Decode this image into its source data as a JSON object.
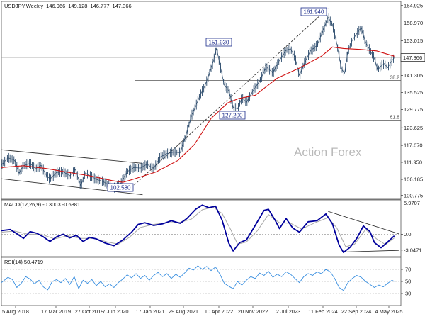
{
  "chart_data": {
    "type": "line",
    "symbol": "USDJPY,Weekly",
    "header_values": [
      "146.966",
      "149.128",
      "146.777",
      "147.366"
    ],
    "watermark": "Action Forex",
    "x_tick_labels": [
      "5 Aug 2018",
      "17 Mar 2019",
      "27 Oct 2019",
      "7 Jun 2020",
      "17 Jan 2021",
      "29 Aug 2021",
      "10 Apr 2022",
      "20 Nov 2022",
      "2 Jul 2023",
      "11 Feb 2024",
      "22 Sep 2024",
      "4 May 2025"
    ],
    "price_panel": {
      "y_ticks": [
        "164.925",
        "158.970",
        "153.015",
        "147.060",
        "141.305",
        "135.525",
        "129.775",
        "123.625",
        "117.670",
        "111.950",
        "106.185",
        "100.775"
      ],
      "last_price": "147.366",
      "fib_levels": [
        {
          "label": "38.2",
          "value": 139.6
        },
        {
          "label": "61.8",
          "value": 126.2
        }
      ],
      "annotations": [
        "161.940",
        "151.930",
        "127.200",
        "102.580"
      ],
      "close": [
        {
          "t": 0,
          "v": 111.0
        },
        {
          "t": 6,
          "v": 113.5
        },
        {
          "t": 12,
          "v": 112.6
        },
        {
          "t": 16,
          "v": 108.3
        },
        {
          "t": 20,
          "v": 110.8
        },
        {
          "t": 26,
          "v": 111.6
        },
        {
          "t": 31,
          "v": 109.8
        },
        {
          "t": 36,
          "v": 110.9
        },
        {
          "t": 40,
          "v": 108.0
        },
        {
          "t": 44,
          "v": 106.3
        },
        {
          "t": 50,
          "v": 108.5
        },
        {
          "t": 56,
          "v": 108.8
        },
        {
          "t": 62,
          "v": 107.4
        },
        {
          "t": 67,
          "v": 109.6
        },
        {
          "t": 72,
          "v": 104.0
        },
        {
          "t": 76,
          "v": 108.4
        },
        {
          "t": 80,
          "v": 107.5
        },
        {
          "t": 86,
          "v": 106.2
        },
        {
          "t": 92,
          "v": 105.5
        },
        {
          "t": 98,
          "v": 104.2
        },
        {
          "t": 103,
          "v": 103.3
        },
        {
          "t": 108,
          "v": 104.8
        },
        {
          "t": 114,
          "v": 108.8
        },
        {
          "t": 120,
          "v": 110.2
        },
        {
          "t": 126,
          "v": 110.0
        },
        {
          "t": 132,
          "v": 111.3
        },
        {
          "t": 138,
          "v": 109.8
        },
        {
          "t": 144,
          "v": 113.8
        },
        {
          "t": 150,
          "v": 114.9
        },
        {
          "t": 156,
          "v": 115.4
        },
        {
          "t": 162,
          "v": 115.2
        },
        {
          "t": 168,
          "v": 122.0
        },
        {
          "t": 172,
          "v": 127.5
        },
        {
          "t": 176,
          "v": 130.8
        },
        {
          "t": 180,
          "v": 134.6
        },
        {
          "t": 184,
          "v": 137.4
        },
        {
          "t": 188,
          "v": 141.5
        },
        {
          "t": 192,
          "v": 146.0
        },
        {
          "t": 195,
          "v": 150.5
        },
        {
          "t": 198,
          "v": 145.0
        },
        {
          "t": 202,
          "v": 138.0
        },
        {
          "t": 206,
          "v": 136.2
        },
        {
          "t": 210,
          "v": 130.5
        },
        {
          "t": 214,
          "v": 130.0
        },
        {
          "t": 218,
          "v": 133.8
        },
        {
          "t": 222,
          "v": 132.2
        },
        {
          "t": 228,
          "v": 136.1
        },
        {
          "t": 234,
          "v": 139.4
        },
        {
          "t": 240,
          "v": 144.2
        },
        {
          "t": 246,
          "v": 142.2
        },
        {
          "t": 252,
          "v": 146.4
        },
        {
          "t": 258,
          "v": 149.8
        },
        {
          "t": 262,
          "v": 150.3
        },
        {
          "t": 266,
          "v": 147.5
        },
        {
          "t": 270,
          "v": 141.3
        },
        {
          "t": 274,
          "v": 145.0
        },
        {
          "t": 280,
          "v": 149.6
        },
        {
          "t": 286,
          "v": 151.4
        },
        {
          "t": 292,
          "v": 157.0
        },
        {
          "t": 296,
          "v": 160.9
        },
        {
          "t": 300,
          "v": 158.5
        },
        {
          "t": 304,
          "v": 152.0
        },
        {
          "t": 308,
          "v": 143.7
        },
        {
          "t": 311,
          "v": 142.0
        },
        {
          "t": 314,
          "v": 149.5
        },
        {
          "t": 318,
          "v": 153.2
        },
        {
          "t": 322,
          "v": 155.4
        },
        {
          "t": 326,
          "v": 157.5
        },
        {
          "t": 330,
          "v": 152.5
        },
        {
          "t": 334,
          "v": 149.8
        },
        {
          "t": 338,
          "v": 147.0
        },
        {
          "t": 341,
          "v": 143.2
        },
        {
          "t": 344,
          "v": 144.5
        },
        {
          "t": 347,
          "v": 145.3
        },
        {
          "t": 350,
          "v": 143.9
        },
        {
          "t": 353,
          "v": 145.8
        },
        {
          "t": 356,
          "v": 147.3
        }
      ],
      "moving_average": [
        {
          "t": 0,
          "v": 110.2
        },
        {
          "t": 20,
          "v": 110.8
        },
        {
          "t": 40,
          "v": 109.9
        },
        {
          "t": 60,
          "v": 108.6
        },
        {
          "t": 80,
          "v": 107.4
        },
        {
          "t": 100,
          "v": 105.8
        },
        {
          "t": 110,
          "v": 105.2
        },
        {
          "t": 120,
          "v": 106.3
        },
        {
          "t": 140,
          "v": 108.7
        },
        {
          "t": 160,
          "v": 112.6
        },
        {
          "t": 175,
          "v": 118.0
        },
        {
          "t": 190,
          "v": 126.8
        },
        {
          "t": 205,
          "v": 132.0
        },
        {
          "t": 215,
          "v": 133.5
        },
        {
          "t": 230,
          "v": 134.6
        },
        {
          "t": 250,
          "v": 140.4
        },
        {
          "t": 270,
          "v": 143.8
        },
        {
          "t": 290,
          "v": 147.8
        },
        {
          "t": 300,
          "v": 150.9
        },
        {
          "t": 310,
          "v": 150.4
        },
        {
          "t": 325,
          "v": 150.1
        },
        {
          "t": 340,
          "v": 149.6
        },
        {
          "t": 356,
          "v": 147.8
        }
      ],
      "channel_upper": [
        {
          "t": 0,
          "v": 116.2
        },
        {
          "t": 128,
          "v": 111.6
        }
      ],
      "channel_lower": [
        {
          "t": 0,
          "v": 106.4
        },
        {
          "t": 128,
          "v": 101.0
        }
      ],
      "dashed_trendline": [
        {
          "t": 118,
          "v": 103.5
        },
        {
          "t": 296,
          "v": 164.0
        }
      ]
    },
    "macd_panel": {
      "title": "MACD(12,26,9) -0.3003 -0.6881",
      "y_ticks": [
        "5.9707",
        "0.0",
        "-3.0471"
      ],
      "macd": [
        {
          "t": 0,
          "v": 0.7
        },
        {
          "t": 8,
          "v": 0.9
        },
        {
          "t": 14,
          "v": 0.1
        },
        {
          "t": 20,
          "v": -0.8
        },
        {
          "t": 26,
          "v": 0.5
        },
        {
          "t": 32,
          "v": 0.2
        },
        {
          "t": 38,
          "v": -0.5
        },
        {
          "t": 44,
          "v": -1.4
        },
        {
          "t": 50,
          "v": -0.5
        },
        {
          "t": 56,
          "v": 0.0
        },
        {
          "t": 62,
          "v": -0.7
        },
        {
          "t": 68,
          "v": -0.2
        },
        {
          "t": 74,
          "v": -1.4
        },
        {
          "t": 80,
          "v": -0.6
        },
        {
          "t": 86,
          "v": -0.9
        },
        {
          "t": 94,
          "v": -1.7
        },
        {
          "t": 102,
          "v": -2.2
        },
        {
          "t": 110,
          "v": -1.1
        },
        {
          "t": 118,
          "v": 0.4
        },
        {
          "t": 124,
          "v": 1.9
        },
        {
          "t": 130,
          "v": 2.2
        },
        {
          "t": 138,
          "v": 1.7
        },
        {
          "t": 146,
          "v": 2.0
        },
        {
          "t": 154,
          "v": 2.6
        },
        {
          "t": 162,
          "v": 2.1
        },
        {
          "t": 168,
          "v": 3.0
        },
        {
          "t": 176,
          "v": 4.8
        },
        {
          "t": 182,
          "v": 5.6
        },
        {
          "t": 188,
          "v": 5.1
        },
        {
          "t": 194,
          "v": 5.4
        },
        {
          "t": 200,
          "v": 2.7
        },
        {
          "t": 206,
          "v": -1.7
        },
        {
          "t": 210,
          "v": -3.2
        },
        {
          "t": 216,
          "v": -1.6
        },
        {
          "t": 222,
          "v": -1.1
        },
        {
          "t": 230,
          "v": 1.7
        },
        {
          "t": 238,
          "v": 4.6
        },
        {
          "t": 242,
          "v": 4.8
        },
        {
          "t": 248,
          "v": 2.7
        },
        {
          "t": 252,
          "v": 1.1
        },
        {
          "t": 258,
          "v": 3.0
        },
        {
          "t": 264,
          "v": 1.2
        },
        {
          "t": 270,
          "v": 0.4
        },
        {
          "t": 278,
          "v": 2.4
        },
        {
          "t": 286,
          "v": 2.6
        },
        {
          "t": 294,
          "v": 3.9
        },
        {
          "t": 300,
          "v": 2.0
        },
        {
          "t": 306,
          "v": -2.1
        },
        {
          "t": 310,
          "v": -3.5
        },
        {
          "t": 316,
          "v": -2.5
        },
        {
          "t": 322,
          "v": -0.8
        },
        {
          "t": 328,
          "v": 1.6
        },
        {
          "t": 334,
          "v": 0.5
        },
        {
          "t": 338,
          "v": -1.6
        },
        {
          "t": 344,
          "v": -2.6
        },
        {
          "t": 350,
          "v": -1.5
        },
        {
          "t": 356,
          "v": -0.3
        }
      ],
      "signal": [
        {
          "t": 0,
          "v": 0.4
        },
        {
          "t": 12,
          "v": 0.6
        },
        {
          "t": 24,
          "v": 0.0
        },
        {
          "t": 36,
          "v": 0.0
        },
        {
          "t": 48,
          "v": -0.9
        },
        {
          "t": 60,
          "v": -0.3
        },
        {
          "t": 72,
          "v": -0.8
        },
        {
          "t": 84,
          "v": -0.8
        },
        {
          "t": 96,
          "v": -1.5
        },
        {
          "t": 106,
          "v": -1.9
        },
        {
          "t": 116,
          "v": -0.6
        },
        {
          "t": 126,
          "v": 1.3
        },
        {
          "t": 138,
          "v": 1.9
        },
        {
          "t": 150,
          "v": 2.2
        },
        {
          "t": 162,
          "v": 2.3
        },
        {
          "t": 172,
          "v": 2.9
        },
        {
          "t": 182,
          "v": 4.7
        },
        {
          "t": 192,
          "v": 5.2
        },
        {
          "t": 200,
          "v": 4.0
        },
        {
          "t": 208,
          "v": 0.8
        },
        {
          "t": 214,
          "v": -1.9
        },
        {
          "t": 222,
          "v": -1.5
        },
        {
          "t": 232,
          "v": 0.7
        },
        {
          "t": 242,
          "v": 3.8
        },
        {
          "t": 252,
          "v": 2.2
        },
        {
          "t": 262,
          "v": 2.1
        },
        {
          "t": 272,
          "v": 1.0
        },
        {
          "t": 284,
          "v": 2.2
        },
        {
          "t": 296,
          "v": 3.2
        },
        {
          "t": 304,
          "v": 1.2
        },
        {
          "t": 312,
          "v": -2.4
        },
        {
          "t": 320,
          "v": -1.9
        },
        {
          "t": 330,
          "v": 0.9
        },
        {
          "t": 340,
          "v": -0.9
        },
        {
          "t": 348,
          "v": -2.0
        },
        {
          "t": 356,
          "v": -0.7
        }
      ],
      "trendline": [
        {
          "t": 296,
          "v": 4.4
        },
        {
          "t": 360,
          "v": 0.1
        }
      ],
      "baseline": [
        {
          "t": 310,
          "v": -3.4
        },
        {
          "t": 360,
          "v": -3.1
        }
      ]
    },
    "rsi_panel": {
      "title": "RSI(14) 50.4719",
      "y_ticks": [
        "70",
        "50",
        "30"
      ],
      "ylim": [
        10,
        90
      ],
      "rsi": [
        {
          "t": 0,
          "v": 48
        },
        {
          "t": 6,
          "v": 57
        },
        {
          "t": 10,
          "v": 53
        },
        {
          "t": 14,
          "v": 40
        },
        {
          "t": 18,
          "v": 47
        },
        {
          "t": 22,
          "v": 58
        },
        {
          "t": 26,
          "v": 54
        },
        {
          "t": 30,
          "v": 46
        },
        {
          "t": 34,
          "v": 52
        },
        {
          "t": 38,
          "v": 41
        },
        {
          "t": 42,
          "v": 36
        },
        {
          "t": 46,
          "v": 50
        },
        {
          "t": 50,
          "v": 53
        },
        {
          "t": 54,
          "v": 48
        },
        {
          "t": 58,
          "v": 55
        },
        {
          "t": 62,
          "v": 45
        },
        {
          "t": 66,
          "v": 58
        },
        {
          "t": 70,
          "v": 38
        },
        {
          "t": 74,
          "v": 52
        },
        {
          "t": 78,
          "v": 47
        },
        {
          "t": 82,
          "v": 53
        },
        {
          "t": 86,
          "v": 43
        },
        {
          "t": 90,
          "v": 50
        },
        {
          "t": 94,
          "v": 41
        },
        {
          "t": 98,
          "v": 46
        },
        {
          "t": 102,
          "v": 40
        },
        {
          "t": 106,
          "v": 48
        },
        {
          "t": 110,
          "v": 54
        },
        {
          "t": 114,
          "v": 61
        },
        {
          "t": 118,
          "v": 56
        },
        {
          "t": 122,
          "v": 63
        },
        {
          "t": 126,
          "v": 55
        },
        {
          "t": 130,
          "v": 60
        },
        {
          "t": 134,
          "v": 52
        },
        {
          "t": 138,
          "v": 60
        },
        {
          "t": 142,
          "v": 65
        },
        {
          "t": 146,
          "v": 58
        },
        {
          "t": 150,
          "v": 63
        },
        {
          "t": 154,
          "v": 55
        },
        {
          "t": 158,
          "v": 62
        },
        {
          "t": 162,
          "v": 57
        },
        {
          "t": 166,
          "v": 64
        },
        {
          "t": 170,
          "v": 72
        },
        {
          "t": 174,
          "v": 69
        },
        {
          "t": 178,
          "v": 76
        },
        {
          "t": 182,
          "v": 70
        },
        {
          "t": 186,
          "v": 75
        },
        {
          "t": 190,
          "v": 68
        },
        {
          "t": 194,
          "v": 74
        },
        {
          "t": 198,
          "v": 62
        },
        {
          "t": 202,
          "v": 47
        },
        {
          "t": 206,
          "v": 42
        },
        {
          "t": 210,
          "v": 38
        },
        {
          "t": 214,
          "v": 50
        },
        {
          "t": 218,
          "v": 44
        },
        {
          "t": 222,
          "v": 52
        },
        {
          "t": 226,
          "v": 58
        },
        {
          "t": 230,
          "v": 55
        },
        {
          "t": 234,
          "v": 64
        },
        {
          "t": 238,
          "v": 60
        },
        {
          "t": 242,
          "v": 67
        },
        {
          "t": 246,
          "v": 57
        },
        {
          "t": 250,
          "v": 62
        },
        {
          "t": 254,
          "v": 58
        },
        {
          "t": 258,
          "v": 66
        },
        {
          "t": 262,
          "v": 62
        },
        {
          "t": 266,
          "v": 55
        },
        {
          "t": 270,
          "v": 48
        },
        {
          "t": 274,
          "v": 58
        },
        {
          "t": 278,
          "v": 63
        },
        {
          "t": 282,
          "v": 60
        },
        {
          "t": 286,
          "v": 66
        },
        {
          "t": 290,
          "v": 63
        },
        {
          "t": 294,
          "v": 70
        },
        {
          "t": 298,
          "v": 66
        },
        {
          "t": 302,
          "v": 55
        },
        {
          "t": 306,
          "v": 40
        },
        {
          "t": 310,
          "v": 35
        },
        {
          "t": 314,
          "v": 48
        },
        {
          "t": 318,
          "v": 55
        },
        {
          "t": 322,
          "v": 60
        },
        {
          "t": 326,
          "v": 57
        },
        {
          "t": 330,
          "v": 50
        },
        {
          "t": 334,
          "v": 45
        },
        {
          "t": 338,
          "v": 40
        },
        {
          "t": 342,
          "v": 44
        },
        {
          "t": 346,
          "v": 41
        },
        {
          "t": 350,
          "v": 47
        },
        {
          "t": 354,
          "v": 52
        },
        {
          "t": 356,
          "v": 50
        }
      ]
    },
    "colors": {
      "price": "#2b4a6b",
      "moving_average": "#d01010",
      "macd": "#00009c",
      "signal": "#a8a8a8",
      "rsi": "#3a8fe0",
      "channel": "#333333",
      "fib_line": "#555555",
      "label_border": "#1a2a8a"
    }
  }
}
